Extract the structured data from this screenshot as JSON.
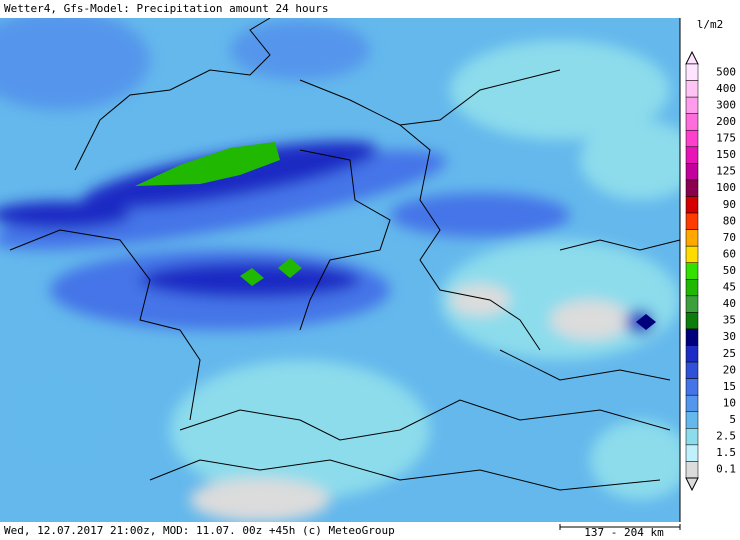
{
  "header": {
    "title": "Wetter4, Gfs-Model: Precipitation amount 24 hours",
    "unit": "l/m2"
  },
  "legend": {
    "levels": [
      {
        "label": "500",
        "color": "#ffe4ff"
      },
      {
        "label": "400",
        "color": "#ffc4f4"
      },
      {
        "label": "300",
        "color": "#ff9cec"
      },
      {
        "label": "200",
        "color": "#ff6cdc"
      },
      {
        "label": "175",
        "color": "#ff40cc"
      },
      {
        "label": "150",
        "color": "#e814b8"
      },
      {
        "label": "125",
        "color": "#c4009c"
      },
      {
        "label": "100",
        "color": "#8c0050"
      },
      {
        "label": "90",
        "color": "#d40000"
      },
      {
        "label": "80",
        "color": "#ff3c00"
      },
      {
        "label": "70",
        "color": "#ffa800"
      },
      {
        "label": "60",
        "color": "#ffdc00"
      },
      {
        "label": "50",
        "color": "#34e000"
      },
      {
        "label": "45",
        "color": "#20b800"
      },
      {
        "label": "40",
        "color": "#3ca03c"
      },
      {
        "label": "35",
        "color": "#0c7c0c"
      },
      {
        "label": "30",
        "color": "#00007c"
      },
      {
        "label": "25",
        "color": "#1c2cc4"
      },
      {
        "label": "20",
        "color": "#3050d8"
      },
      {
        "label": "15",
        "color": "#4474e8"
      },
      {
        "label": "10",
        "color": "#5496ec"
      },
      {
        "label": "5",
        "color": "#64b8ec"
      },
      {
        "label": "2.5",
        "color": "#8cdcec"
      },
      {
        "label": "1.5",
        "color": "#c0f0fc"
      },
      {
        "label": "0.1",
        "color": "#dcdcdc"
      }
    ]
  },
  "footer": {
    "text": "Wed, 12.07.2017 21:00z, MOD: 11.07. 00z +45h (c) MeteoGroup",
    "scale": "137 - 204 km"
  }
}
